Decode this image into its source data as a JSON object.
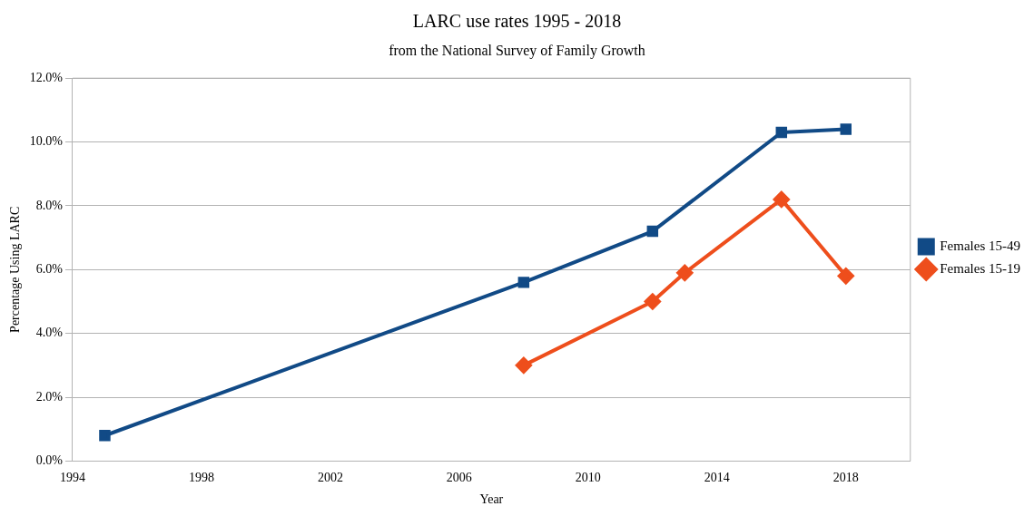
{
  "chart_data": {
    "type": "line",
    "title": "LARC use rates 1995 - 2018",
    "subtitle": "from the National Survey of Family Growth",
    "xlabel": "Year",
    "ylabel": "Percentage Using LARC",
    "xlim": [
      1994,
      2020
    ],
    "xticks": [
      1994,
      1998,
      2002,
      2006,
      2010,
      2014,
      2018
    ],
    "ylim": [
      0,
      12
    ],
    "yticks": [
      {
        "value": 0,
        "label": "0.0%"
      },
      {
        "value": 2,
        "label": "2.0%"
      },
      {
        "value": 4,
        "label": "4.0%"
      },
      {
        "value": 6,
        "label": "6.0%"
      },
      {
        "value": 8,
        "label": "8.0%"
      },
      {
        "value": 10,
        "label": "10.0%"
      },
      {
        "value": 12,
        "label": "12.0%"
      }
    ],
    "grid": "y",
    "legend": "right",
    "line_style": "solid",
    "series": [
      {
        "name": "Females 15-49",
        "color": "#114a86",
        "marker": "square",
        "x": [
          1995,
          2008,
          2012,
          2016,
          2018
        ],
        "values": [
          0.8,
          5.6,
          7.2,
          10.3,
          10.4
        ]
      },
      {
        "name": "Females 15-19",
        "color": "#ee4e1c",
        "marker": "diamond",
        "x": [
          2008,
          2012,
          2013,
          2016,
          2018
        ],
        "values": [
          3.0,
          5.0,
          5.9,
          8.2,
          5.8
        ]
      }
    ]
  }
}
